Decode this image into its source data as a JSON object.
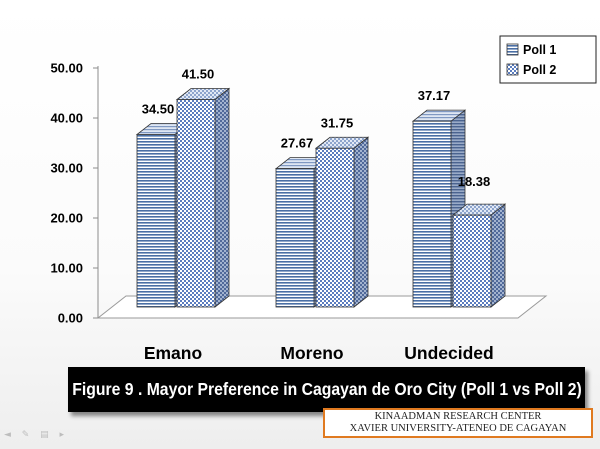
{
  "chart_data": {
    "type": "bar",
    "categories": [
      "Emano",
      "Moreno",
      "Undecided"
    ],
    "series": [
      {
        "name": "Poll 1",
        "values": [
          34.5,
          27.67,
          37.17
        ]
      },
      {
        "name": "Poll 2",
        "values": [
          41.5,
          31.75,
          18.38
        ]
      }
    ],
    "data_labels": [
      [
        "34.50",
        "27.67",
        "37.17"
      ],
      [
        "41.50",
        "31.75",
        "18.38"
      ]
    ],
    "y_ticks": [
      "0.00",
      "10.00",
      "20.00",
      "30.00",
      "40.00",
      "50.00"
    ],
    "ylim": [
      0,
      50
    ],
    "style": "3D clustered column",
    "grid": false,
    "legend_position": "top-right",
    "colors": {
      "poll1": "#4a6fa5",
      "poll2": "#5b7dbf",
      "bar_light": "#ffffff",
      "bar_side": "#556f9c"
    }
  },
  "caption": "Figure 9 . Mayor Preference in Cagayan de Oro City (Poll 1 vs Poll 2)",
  "source": {
    "line1": "KINAADMAN RESEARCH CENTER",
    "line2": "XAVIER UNIVERSITY-ATENEO DE CAGAYAN"
  },
  "slide_tools": "◄ ✎ ▤ ▸"
}
